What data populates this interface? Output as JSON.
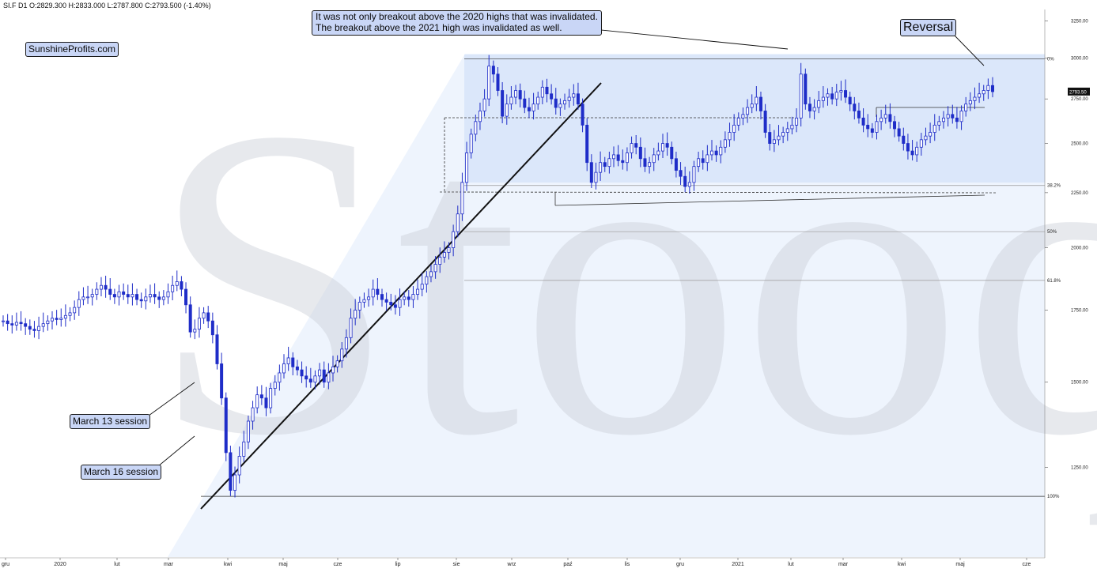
{
  "header": {
    "ohlc_text": "SI.F  D1  O:2829.300  H:2833.000  L:2787.800  C:2793.500  (-1.40%)"
  },
  "watermark": "Stooq",
  "callouts": {
    "site": "SunshineProfits.com",
    "top_line1": "It was not only breakout above the 2020 highs that was invalidated.",
    "top_line2": "The breakout above the 2021 high was invalidated as well.",
    "reversal": "Reversal",
    "march13": "March 13 session",
    "march16": "March 16 session"
  },
  "colors": {
    "candle": "#1f2dc8",
    "fib_zone": "#dbe7fa",
    "callout_bg": "#c9d6f6",
    "price_tag_bg": "#111111"
  },
  "chart_data": {
    "type": "candlestick",
    "symbol": "SI.F",
    "interval": "D1",
    "yscale": "log",
    "ylim": [
      1030,
      3330
    ],
    "y_ticks": [
      3250,
      3000,
      2750,
      2500,
      2250,
      2000,
      1750,
      1500,
      1250
    ],
    "y_tick_labels": [
      "3250.00",
      "3000.00",
      "2750.00",
      "2500.00",
      "2250.00",
      "2000.00",
      "1750.00",
      "1500.00",
      "1250.00"
    ],
    "x_ticks": [
      "gru",
      "2020",
      "lut",
      "mar",
      "kwi",
      "maj",
      "cze",
      "lip",
      "sie",
      "wrz",
      "paź",
      "lis",
      "gru",
      "2021",
      "lut",
      "mar",
      "kwi",
      "maj",
      "cze"
    ],
    "last_price": "2793.50",
    "fib_levels": [
      {
        "label": "0%",
        "value": 2995
      },
      {
        "label": "38.2%",
        "value": 2285
      },
      {
        "label": "50%",
        "value": 2070
      },
      {
        "label": "61.8%",
        "value": 1865
      },
      {
        "label": "100%",
        "value": 1175
      }
    ],
    "series_close": [
      1710,
      1700,
      1695,
      1705,
      1700,
      1690,
      1680,
      1675,
      1690,
      1700,
      1710,
      1720,
      1715,
      1720,
      1730,
      1740,
      1760,
      1790,
      1800,
      1800,
      1810,
      1830,
      1845,
      1830,
      1810,
      1800,
      1820,
      1810,
      1800,
      1810,
      1790,
      1785,
      1800,
      1810,
      1800,
      1790,
      1800,
      1820,
      1845,
      1860,
      1830,
      1770,
      1670,
      1680,
      1720,
      1740,
      1710,
      1660,
      1560,
      1450,
      1290,
      1190,
      1230,
      1280,
      1320,
      1380,
      1420,
      1460,
      1450,
      1420,
      1480,
      1500,
      1530,
      1560,
      1580,
      1550,
      1540,
      1520,
      1510,
      1500,
      1520,
      1540,
      1500,
      1530,
      1550,
      1570,
      1610,
      1650,
      1720,
      1750,
      1780,
      1790,
      1800,
      1830,
      1810,
      1790,
      1780,
      1770,
      1760,
      1790,
      1800,
      1790,
      1810,
      1830,
      1850,
      1880,
      1900,
      1930,
      1960,
      1980,
      2000,
      2070,
      2150,
      2300,
      2450,
      2550,
      2620,
      2680,
      2750,
      2950,
      2900,
      2800,
      2650,
      2720,
      2760,
      2800,
      2750,
      2700,
      2680,
      2720,
      2760,
      2820,
      2780,
      2750,
      2700,
      2720,
      2740,
      2760,
      2780,
      2720,
      2600,
      2400,
      2300,
      2350,
      2400,
      2380,
      2420,
      2440,
      2410,
      2400,
      2450,
      2500,
      2480,
      2420,
      2380,
      2400,
      2440,
      2460,
      2500,
      2480,
      2420,
      2360,
      2330,
      2280,
      2300,
      2380,
      2420,
      2400,
      2440,
      2460,
      2440,
      2480,
      2520,
      2560,
      2600,
      2640,
      2660,
      2700,
      2720,
      2760,
      2680,
      2560,
      2500,
      2520,
      2540,
      2560,
      2580,
      2600,
      2640,
      2900,
      2720,
      2680,
      2700,
      2740,
      2760,
      2780,
      2750,
      2790,
      2800,
      2760,
      2720,
      2680,
      2640,
      2600,
      2580,
      2560,
      2620,
      2640,
      2660,
      2620,
      2580,
      2540,
      2500,
      2460,
      2440,
      2480,
      2520,
      2540,
      2560,
      2600,
      2620,
      2640,
      2660,
      2640,
      2620,
      2680,
      2720,
      2740,
      2760,
      2780,
      2800,
      2830,
      2793
    ]
  }
}
